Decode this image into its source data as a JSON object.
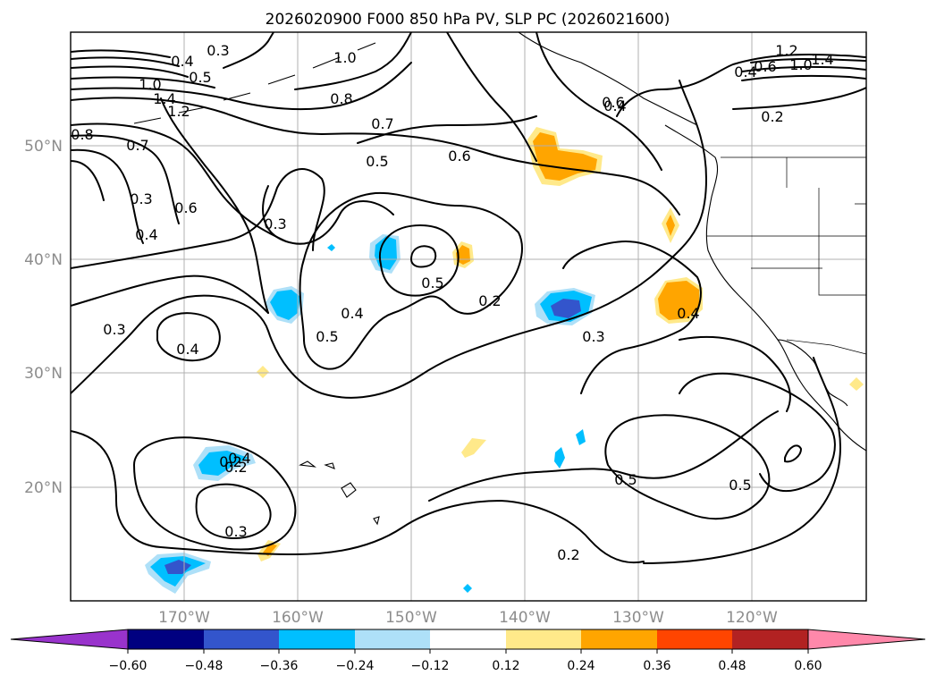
{
  "title": "2026020900 F000 850 hPa PV, SLP PC (2026021600)",
  "lat_labels": [
    "50°N",
    "40°N",
    "30°N",
    "20°N"
  ],
  "lon_labels": [
    "170°W",
    "160°W",
    "150°W",
    "140°W",
    "130°W",
    "120°W"
  ],
  "colorbar": {
    "ticks": [
      "−0.60",
      "−0.48",
      "−0.36",
      "−0.24",
      "−0.12",
      "0.12",
      "0.24",
      "0.36",
      "0.48",
      "0.60"
    ],
    "colors": [
      "#9933cc",
      "#000080",
      "#3355cc",
      "#00bfff",
      "#aee0f8",
      "#ffffff",
      "#ffe98a",
      "#ffa500",
      "#ff4500",
      "#b22222",
      "#ff88aa"
    ]
  },
  "contour_labels": [
    "0.3",
    "0.4",
    "0.5",
    "1.0",
    "1.2",
    "1.4",
    "0.8",
    "0.7",
    "0.6",
    "0.6",
    "0.3",
    "0.4",
    "0.3",
    "0.5",
    "0.6",
    "0.7",
    "0.8",
    "1.0",
    "0.3",
    "0.4",
    "0.2",
    "0.4",
    "0.5",
    "0.4",
    "0.5",
    "0.2",
    "0.3",
    "0.4",
    "0.2",
    "0.3",
    "0.5",
    "0.5",
    "0.2",
    "1.2",
    "1.4",
    "1.0",
    "0.6",
    "0.4",
    "0.2",
    "0.4"
  ]
}
